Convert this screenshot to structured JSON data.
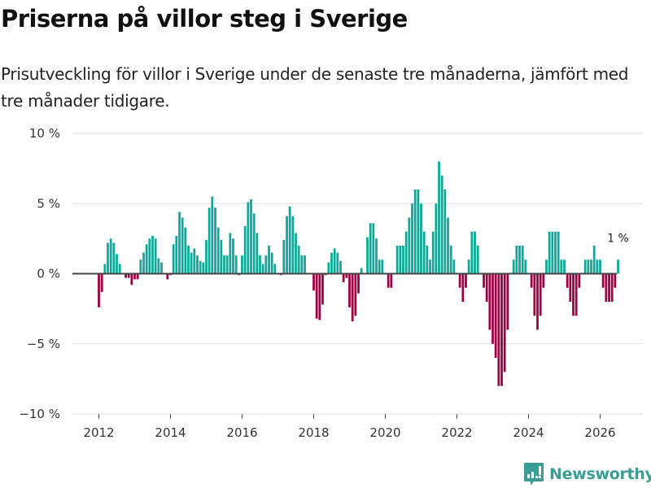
{
  "header": {
    "title": "Priserna på villor steg i Sverige",
    "subtitle": "Prisutveckling för villor i Sverige under de senaste tre månaderna, jämfört med tre månader tidigare."
  },
  "colors": {
    "positive": "#0ea899",
    "negative": "#9b0045",
    "zero_line": "#444444",
    "grid": "#dddddd",
    "brand": "#3a9d93"
  },
  "brand": {
    "name": "Newsworthy",
    "icon": "bar-chart-speech-bubble-icon"
  },
  "chart_data": {
    "type": "bar",
    "title": "Priserna på villor steg i Sverige",
    "xlabel": "",
    "ylabel": "",
    "ylim": [
      -10,
      10
    ],
    "yticks": [
      10,
      5,
      0,
      -5,
      -10
    ],
    "ytick_labels": [
      "10 %",
      "5 %",
      "0 %",
      "−5 %",
      "−10 %"
    ],
    "xticks": [
      "2012",
      "2014",
      "2016",
      "2018",
      "2020",
      "2022",
      "2024",
      "2026"
    ],
    "grid": true,
    "legend": "none",
    "start": "2012-01",
    "frequency": "monthly",
    "unit": "%",
    "annotation": {
      "label": "1 %",
      "target": "last"
    },
    "values": [
      -2.4,
      -1.3,
      0.7,
      2.2,
      2.5,
      2.2,
      1.4,
      0.7,
      0.0,
      -0.3,
      -0.3,
      -0.8,
      -0.4,
      -0.4,
      1.0,
      1.5,
      2.1,
      2.5,
      2.7,
      2.5,
      1.1,
      0.8,
      0.0,
      -0.4,
      -0.1,
      2.1,
      2.7,
      4.4,
      4.0,
      3.3,
      2.0,
      1.5,
      1.8,
      1.3,
      0.9,
      0.8,
      2.4,
      4.7,
      5.5,
      4.7,
      3.3,
      2.4,
      1.3,
      1.3,
      2.9,
      2.5,
      1.3,
      -0.1,
      1.3,
      3.4,
      5.1,
      5.3,
      4.3,
      2.9,
      1.3,
      0.7,
      1.3,
      2.0,
      1.5,
      0.7,
      0.0,
      -0.1,
      2.4,
      4.1,
      4.8,
      4.1,
      2.9,
      2.0,
      1.3,
      1.3,
      0.0,
      0.0,
      -1.2,
      -3.2,
      -3.3,
      -2.2,
      -0.1,
      0.8,
      1.5,
      1.8,
      1.5,
      0.9,
      -0.6,
      -0.3,
      -2.4,
      -3.4,
      -3.0,
      -1.4,
      0.4,
      0.0,
      2.6,
      3.6,
      3.6,
      2.5,
      1.0,
      1.0,
      0.0,
      -1.0,
      -1.0,
      0.0,
      2.0,
      2.0,
      2.0,
      3.0,
      4.0,
      5.0,
      6.0,
      6.0,
      5.0,
      3.0,
      2.0,
      1.0,
      3.0,
      5.0,
      8.0,
      7.0,
      6.0,
      4.0,
      2.0,
      1.0,
      0.0,
      -1.0,
      -2.0,
      -1.0,
      1.0,
      3.0,
      3.0,
      2.0,
      0.0,
      -1.0,
      -2.0,
      -4.0,
      -5.0,
      -6.0,
      -8.0,
      -8.0,
      -7.0,
      -4.0,
      0.0,
      1.0,
      2.0,
      2.0,
      2.0,
      1.0,
      0.0,
      -1.0,
      -3.0,
      -4.0,
      -3.0,
      -1.0,
      1.0,
      3.0,
      3.0,
      3.0,
      3.0,
      1.0,
      1.0,
      -1.0,
      -2.0,
      -3.0,
      -3.0,
      -1.0,
      0.0,
      1.0,
      1.0,
      1.0,
      2.0,
      1.0,
      1.0,
      -1.0,
      -2.0,
      -2.0,
      -2.0,
      -1.0,
      1.0
    ]
  }
}
